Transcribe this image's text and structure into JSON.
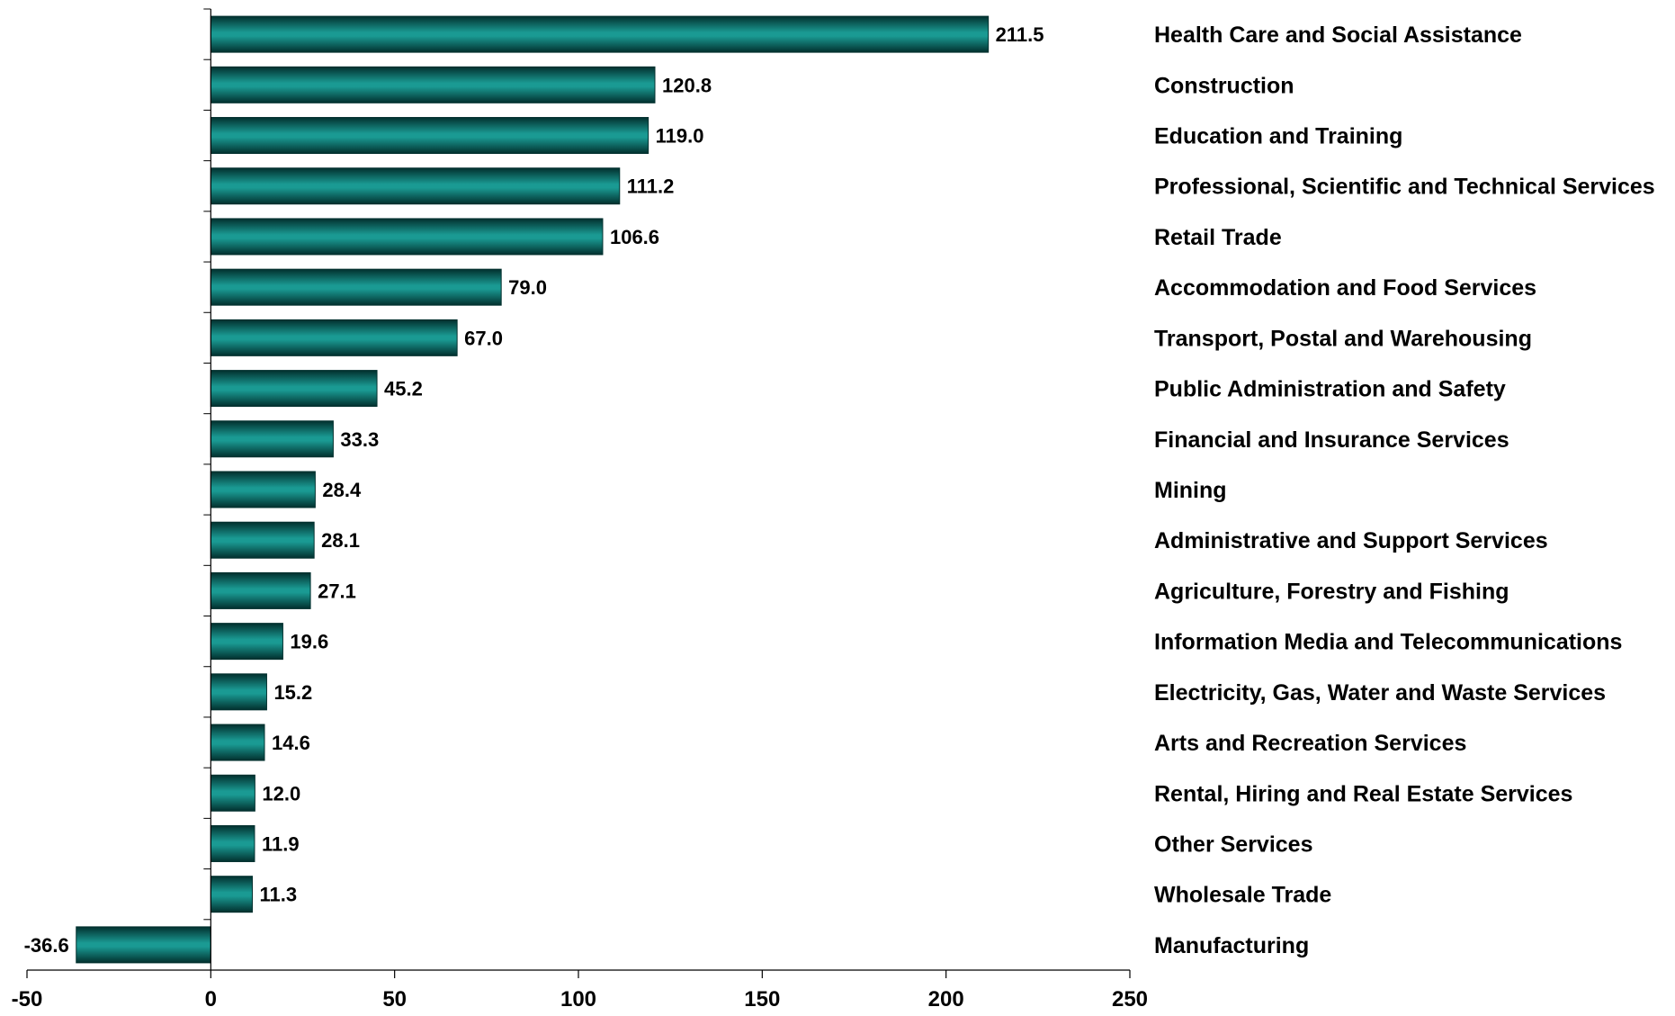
{
  "colors": {
    "bar_center": "#1a9a93",
    "bar_edge": "#02302e",
    "axis": "#000000",
    "text": "#000000"
  },
  "chart_data": {
    "type": "bar",
    "orientation": "horizontal",
    "categories": [
      "Health Care and Social Assistance",
      "Construction",
      "Education and Training",
      "Professional, Scientific and Technical Services",
      "Retail Trade",
      "Accommodation and Food Services",
      "Transport, Postal and Warehousing",
      "Public Administration and Safety",
      "Financial and Insurance Services",
      "Mining",
      "Administrative and Support Services",
      "Agriculture, Forestry and Fishing",
      "Information Media and Telecommunications",
      "Electricity, Gas, Water and Waste Services",
      "Arts and Recreation Services",
      "Rental, Hiring and Real Estate Services",
      "Other Services",
      "Wholesale Trade",
      "Manufacturing"
    ],
    "values": [
      211.5,
      120.8,
      119.0,
      111.2,
      106.6,
      79.0,
      67.0,
      45.2,
      33.3,
      28.4,
      28.1,
      27.1,
      19.6,
      15.2,
      14.6,
      12.0,
      11.9,
      11.3,
      -36.6
    ],
    "value_labels": [
      "211.5",
      "120.8",
      "119.0",
      "111.2",
      "106.6",
      "79.0",
      "67.0",
      "45.2",
      "33.3",
      "28.4",
      "28.1",
      "27.1",
      "19.6",
      "15.2",
      "14.6",
      "12.0",
      "11.9",
      "11.3",
      "-36.6"
    ],
    "xlim": [
      -50,
      250
    ],
    "xticks": [
      -50,
      0,
      50,
      100,
      150,
      200,
      250
    ],
    "xtick_labels": [
      "-50",
      "0",
      "50",
      "100",
      "150",
      "200",
      "250"
    ],
    "grid": false,
    "title": "",
    "xlabel": "",
    "ylabel": ""
  }
}
